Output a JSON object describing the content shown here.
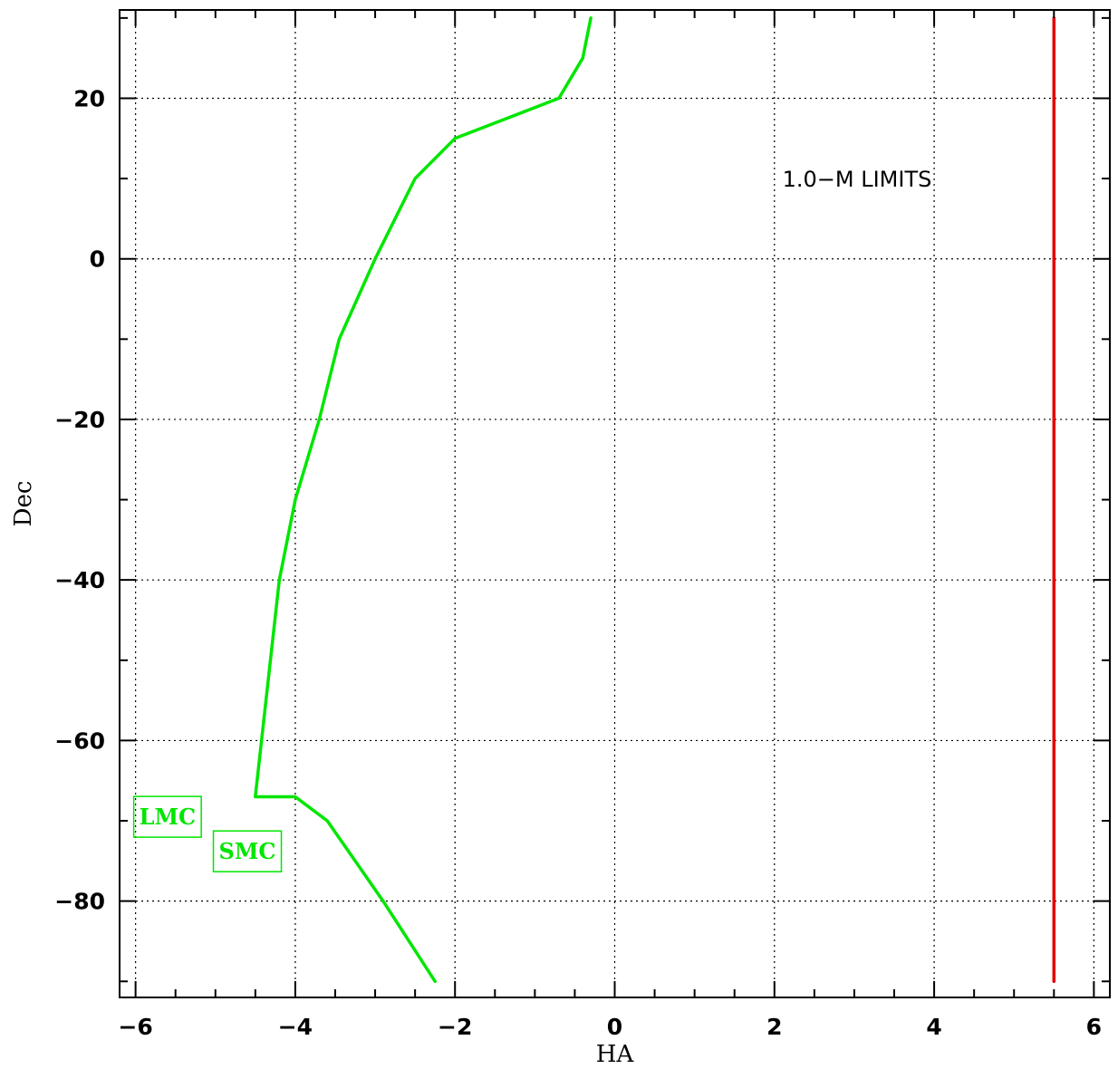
{
  "chart_data": {
    "type": "line",
    "title": "",
    "xlabel": "HA",
    "ylabel": "Dec",
    "xlim": [
      -6.2,
      6.2
    ],
    "ylim": [
      -92,
      31
    ],
    "grid": true,
    "x_ticks": [
      -6,
      -4,
      -2,
      0,
      2,
      4,
      6
    ],
    "x_tick_labels": [
      "−6",
      "−4",
      "−2",
      "0",
      "2",
      "4",
      "6"
    ],
    "y_ticks": [
      -80,
      -60,
      -40,
      -20,
      0,
      20
    ],
    "y_tick_labels": [
      "−80",
      "−60",
      "−40",
      "−20",
      "0",
      "20"
    ],
    "series": [
      {
        "color": "#00e600",
        "x": [
          -2.25,
          -2.9,
          -3.6,
          -4.0,
          -4.5,
          -4.2,
          -4.0,
          -3.7,
          -3.45,
          -3.0,
          -2.5,
          -2.0,
          -0.7,
          -0.4,
          -0.3
        ],
        "y": [
          -90,
          -80,
          -70,
          -67,
          -67,
          -40,
          -30,
          -20,
          -10,
          0,
          10,
          15,
          20,
          25,
          30
        ]
      },
      {
        "color": "#e60000",
        "x": [
          5.5,
          5.5
        ],
        "y": [
          -90,
          30
        ]
      }
    ],
    "annotations": [
      {
        "text": "1.0−M LIMITS",
        "x": 2.1,
        "y": 9
      },
      {
        "text": "LMC",
        "x": -5.6,
        "y": -69.5,
        "boxed": true,
        "color": "#00e600"
      },
      {
        "text": "SMC",
        "x": -4.6,
        "y": -73.8,
        "boxed": true,
        "color": "#00e600"
      }
    ]
  }
}
